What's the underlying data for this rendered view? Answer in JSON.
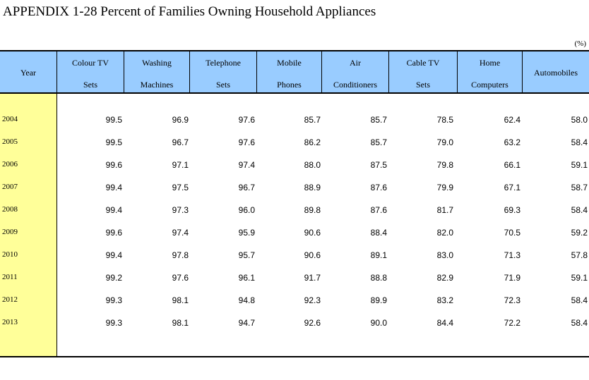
{
  "title": "APPENDIX 1-28  Percent of Families Owning Household Appliances",
  "unit": "(%)",
  "columns": [
    {
      "line1": "Year",
      "line2": ""
    },
    {
      "line1": "Colour TV",
      "line2": "Sets"
    },
    {
      "line1": "Washing",
      "line2": "Machines"
    },
    {
      "line1": "Telephone",
      "line2": "Sets"
    },
    {
      "line1": "Mobile",
      "line2": "Phones"
    },
    {
      "line1": "Air",
      "line2": "Conditioners"
    },
    {
      "line1": "Cable TV",
      "line2": "Sets"
    },
    {
      "line1": "Home",
      "line2": "Computers"
    },
    {
      "line1": "Automobiles",
      "line2": ""
    }
  ],
  "rows": [
    {
      "year": "2004",
      "values": [
        "99.5",
        "96.9",
        "97.6",
        "85.7",
        "85.7",
        "78.5",
        "62.4",
        "58.0"
      ]
    },
    {
      "year": "2005",
      "values": [
        "99.5",
        "96.7",
        "97.6",
        "86.2",
        "85.7",
        "79.0",
        "63.2",
        "58.4"
      ]
    },
    {
      "year": "2006",
      "values": [
        "99.6",
        "97.1",
        "97.4",
        "88.0",
        "87.5",
        "79.8",
        "66.1",
        "59.1"
      ]
    },
    {
      "year": "2007",
      "values": [
        "99.4",
        "97.5",
        "96.7",
        "88.9",
        "87.6",
        "79.9",
        "67.1",
        "58.7"
      ]
    },
    {
      "year": "2008",
      "values": [
        "99.4",
        "97.3",
        "96.0",
        "89.8",
        "87.6",
        "81.7",
        "69.3",
        "58.4"
      ]
    },
    {
      "year": "2009",
      "values": [
        "99.6",
        "97.4",
        "95.9",
        "90.6",
        "88.4",
        "82.0",
        "70.5",
        "59.2"
      ]
    },
    {
      "year": "2010",
      "values": [
        "99.4",
        "97.8",
        "95.7",
        "90.6",
        "89.1",
        "83.0",
        "71.3",
        "57.8"
      ]
    },
    {
      "year": "2011",
      "values": [
        "99.2",
        "97.6",
        "96.1",
        "91.7",
        "88.8",
        "82.9",
        "71.9",
        "59.1"
      ]
    },
    {
      "year": "2012",
      "values": [
        "99.3",
        "98.1",
        "94.8",
        "92.3",
        "89.9",
        "83.2",
        "72.3",
        "58.4"
      ]
    },
    {
      "year": "2013",
      "values": [
        "99.3",
        "98.1",
        "94.7",
        "92.6",
        "90.0",
        "84.4",
        "72.2",
        "58.4"
      ]
    }
  ],
  "colors": {
    "header_bg": "#99ccff",
    "year_col_bg": "#ffff99"
  }
}
